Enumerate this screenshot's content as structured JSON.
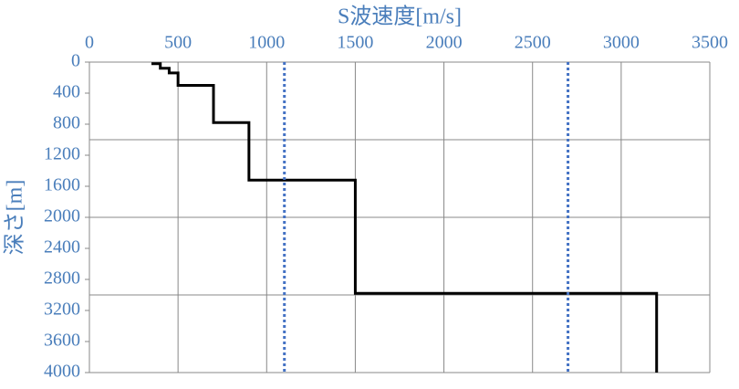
{
  "chart_data": {
    "type": "line",
    "title": "S波速度[m/s]",
    "y_label": "深さ[m]",
    "xlim": [
      0,
      3500
    ],
    "xticks": [
      0,
      500,
      1000,
      1500,
      2000,
      2500,
      3000,
      3500
    ],
    "ylim": [
      0,
      4000
    ],
    "yticks": [
      0,
      400,
      800,
      1200,
      1600,
      2000,
      2400,
      2800,
      3200,
      3600,
      4000
    ],
    "y_inverted": true,
    "x_grid": true,
    "y_gridlines": [
      1000,
      2000,
      3000
    ],
    "series": [
      {
        "color": "#000000",
        "dash": false,
        "x": [
          350,
          400,
          400,
          450,
          450,
          500,
          500,
          700,
          700,
          900,
          900,
          1500,
          1500,
          3200,
          3200
        ],
        "values": [
          20,
          20,
          80,
          80,
          140,
          140,
          300,
          300,
          780,
          780,
          1520,
          1520,
          2980,
          2980,
          4000
        ]
      },
      {
        "color": "#4472c4",
        "dash": true,
        "x": [
          1100,
          1100
        ],
        "values": [
          0,
          4000
        ]
      },
      {
        "color": "#4472c4",
        "dash": true,
        "x": [
          2700,
          2700
        ],
        "values": [
          0,
          4000
        ]
      }
    ]
  }
}
